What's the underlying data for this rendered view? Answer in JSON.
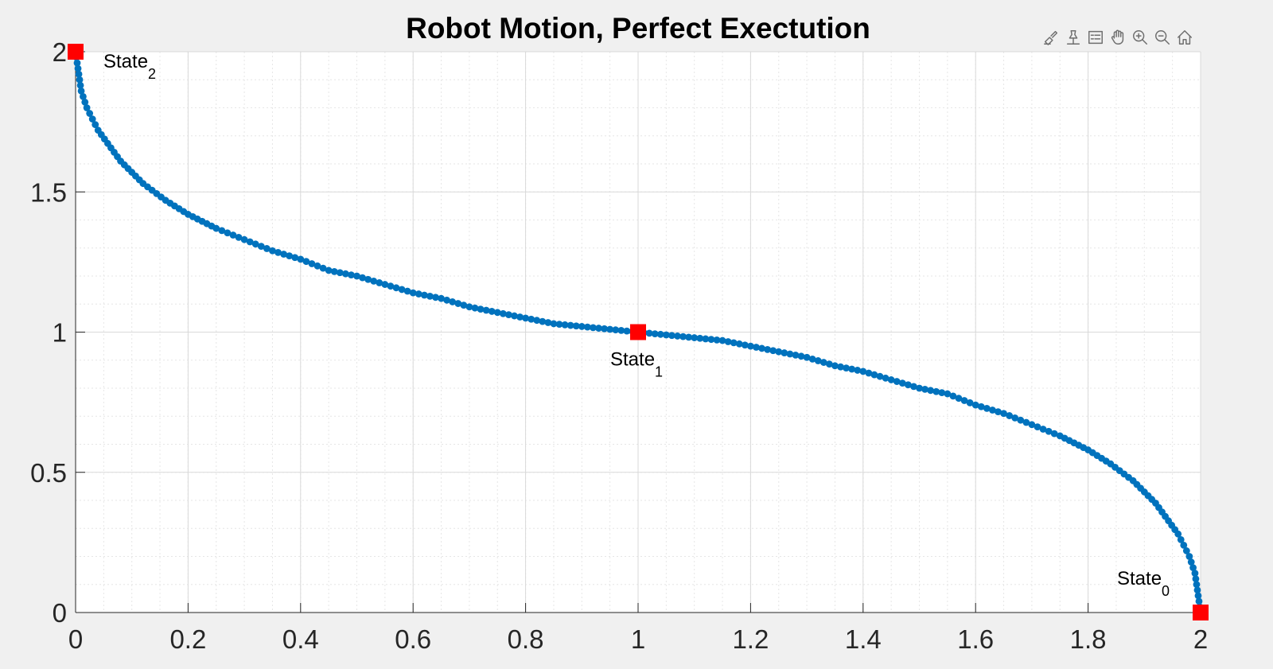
{
  "chart_data": {
    "type": "scatter",
    "title": "Robot Motion, Perfect Exectution",
    "xlabel": "",
    "ylabel": "",
    "xlim": [
      0,
      2
    ],
    "ylim": [
      0,
      2
    ],
    "x_ticks": [
      0,
      0.2,
      0.4,
      0.6,
      0.8,
      1,
      1.2,
      1.4,
      1.6,
      1.8,
      2
    ],
    "x_tick_labels": [
      "0",
      "0.2",
      "0.4",
      "0.6",
      "0.8",
      "1",
      "1.2",
      "1.4",
      "1.6",
      "1.8",
      "2"
    ],
    "y_ticks": [
      0,
      0.5,
      1,
      1.5,
      2
    ],
    "y_tick_labels": [
      "0",
      "0.5",
      "1",
      "1.5",
      "2"
    ],
    "grid": true,
    "minor_grid": true,
    "series": [
      {
        "marker": "dot",
        "color": "#0072bd",
        "description_points": "dense trajectory from (2,0) through (1,1) to (0,2), sampled at 101 steps per segment",
        "segments": [
          {
            "from": [
              2,
              0
            ],
            "to": [
              1,
              1
            ],
            "samples": 101
          },
          {
            "from": [
              1,
              1
            ],
            "to": [
              0,
              2
            ],
            "samples": 101
          }
        ],
        "x": [
          2,
          1.99,
          1.98,
          1.96,
          1.92,
          1.88,
          1.84,
          1.8,
          1.75,
          1.7,
          1.65,
          1.6,
          1.55,
          1.5,
          1.45,
          1.4,
          1.35,
          1.3,
          1.25,
          1.2,
          1.15,
          1.1,
          1.05,
          1,
          0.95,
          0.9,
          0.85,
          0.8,
          0.75,
          0.7,
          0.65,
          0.6,
          0.55,
          0.5,
          0.45,
          0.4,
          0.35,
          0.3,
          0.25,
          0.2,
          0.16,
          0.12,
          0.08,
          0.04,
          0.02,
          0.01,
          0
        ],
        "y": [
          0,
          0.14,
          0.2,
          0.28,
          0.39,
          0.47,
          0.53,
          0.58,
          0.63,
          0.67,
          0.71,
          0.74,
          0.78,
          0.8,
          0.83,
          0.86,
          0.88,
          0.91,
          0.93,
          0.95,
          0.97,
          0.98,
          0.99,
          1,
          1.01,
          1.02,
          1.03,
          1.05,
          1.07,
          1.09,
          1.12,
          1.14,
          1.17,
          1.2,
          1.22,
          1.26,
          1.29,
          1.33,
          1.37,
          1.42,
          1.47,
          1.53,
          1.61,
          1.72,
          1.8,
          1.86,
          2
        ]
      },
      {
        "marker": "square",
        "color": "#ff0000",
        "x": [
          2,
          1,
          0
        ],
        "y": [
          0,
          1,
          2
        ]
      }
    ],
    "annotations": [
      {
        "base": "State",
        "sub": "0",
        "x": 2,
        "y": 0,
        "anchor": "above-left"
      },
      {
        "base": "State",
        "sub": "1",
        "x": 1,
        "y": 1,
        "anchor": "below"
      },
      {
        "base": "State",
        "sub": "2",
        "x": 0,
        "y": 2,
        "anchor": "right"
      }
    ]
  },
  "toolbar": {
    "icons": [
      "brush-icon",
      "datatip-icon",
      "legend-icon",
      "pan-icon",
      "zoom-in-icon",
      "zoom-out-icon",
      "home-icon"
    ]
  }
}
